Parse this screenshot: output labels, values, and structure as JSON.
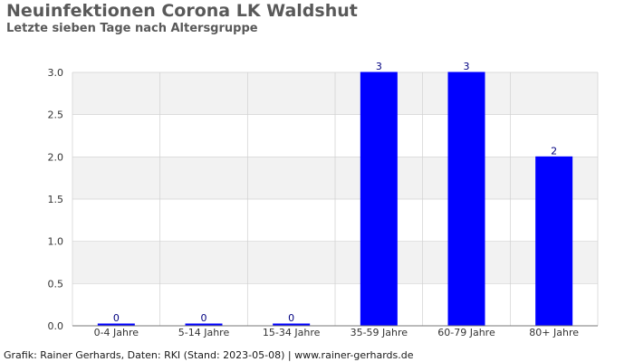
{
  "header": {
    "title": "Neuinfektionen Corona LK Waldshut",
    "subtitle": "Letzte sieben Tage nach Altersgruppe"
  },
  "footer": {
    "text": "Grafik: Rainer Gerhards, Daten: RKI (Stand: 2023-05-08) | www.rainer-gerhards.de"
  },
  "colors": {
    "bar": "#0000ff",
    "band": "#f2f2f2",
    "grid": "#d0d0d0",
    "axis_text": "#333333",
    "label_text": "#000080"
  },
  "chart_data": {
    "type": "bar",
    "title": "Neuinfektionen Corona LK Waldshut",
    "subtitle": "Letzte sieben Tage nach Altersgruppe",
    "xlabel": "",
    "ylabel": "",
    "categories": [
      "0-4 Jahre",
      "5-14 Jahre",
      "15-34 Jahre",
      "35-59 Jahre",
      "60-79 Jahre",
      "80+ Jahre"
    ],
    "values": [
      0,
      0,
      0,
      3,
      3,
      2
    ],
    "ylim": [
      0,
      3.0
    ],
    "yticks": [
      "0.0",
      "0.5",
      "1.0",
      "1.5",
      "2.0",
      "2.5",
      "3.0"
    ],
    "data_labels": [
      "0",
      "0",
      "0",
      "3",
      "3",
      "2"
    ],
    "grid": true,
    "legend": "none"
  }
}
